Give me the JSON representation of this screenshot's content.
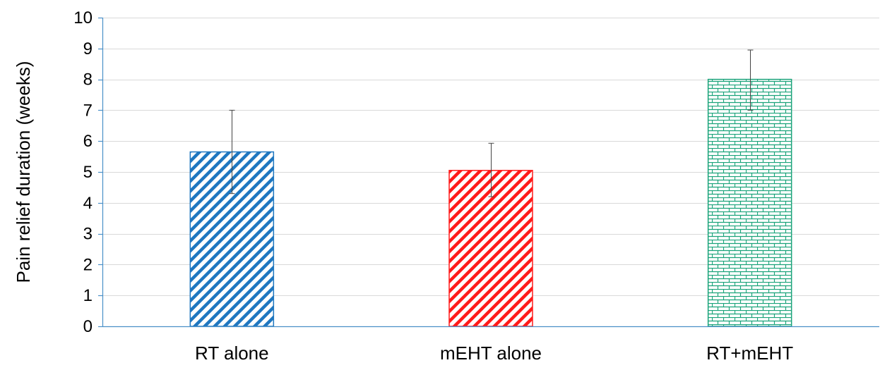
{
  "chart_data": {
    "type": "bar",
    "title": "",
    "xlabel": "",
    "ylabel": "Pain relief duration (weeks)",
    "ylim": [
      0,
      10
    ],
    "yticks": [
      "0",
      "1",
      "2",
      "3",
      "4",
      "5",
      "6",
      "7",
      "8",
      "9",
      "10"
    ],
    "grid": true,
    "legend": "none",
    "categories": [
      "RT alone",
      "mEHT alone",
      "RT+mEHT"
    ],
    "values": [
      5.65,
      5.05,
      8.0
    ],
    "error_low": [
      4.3,
      4.2,
      7.0
    ],
    "error_high": [
      7.0,
      5.93,
      8.95
    ],
    "patterns": [
      "diagonal-stripes",
      "diagonal-stripes",
      "brick"
    ],
    "colors": [
      "#1f77c0",
      "#ff1a1a",
      "#1aa37a"
    ],
    "axis_color": "#4a90c8",
    "grid_color": "#d9d9d9"
  }
}
